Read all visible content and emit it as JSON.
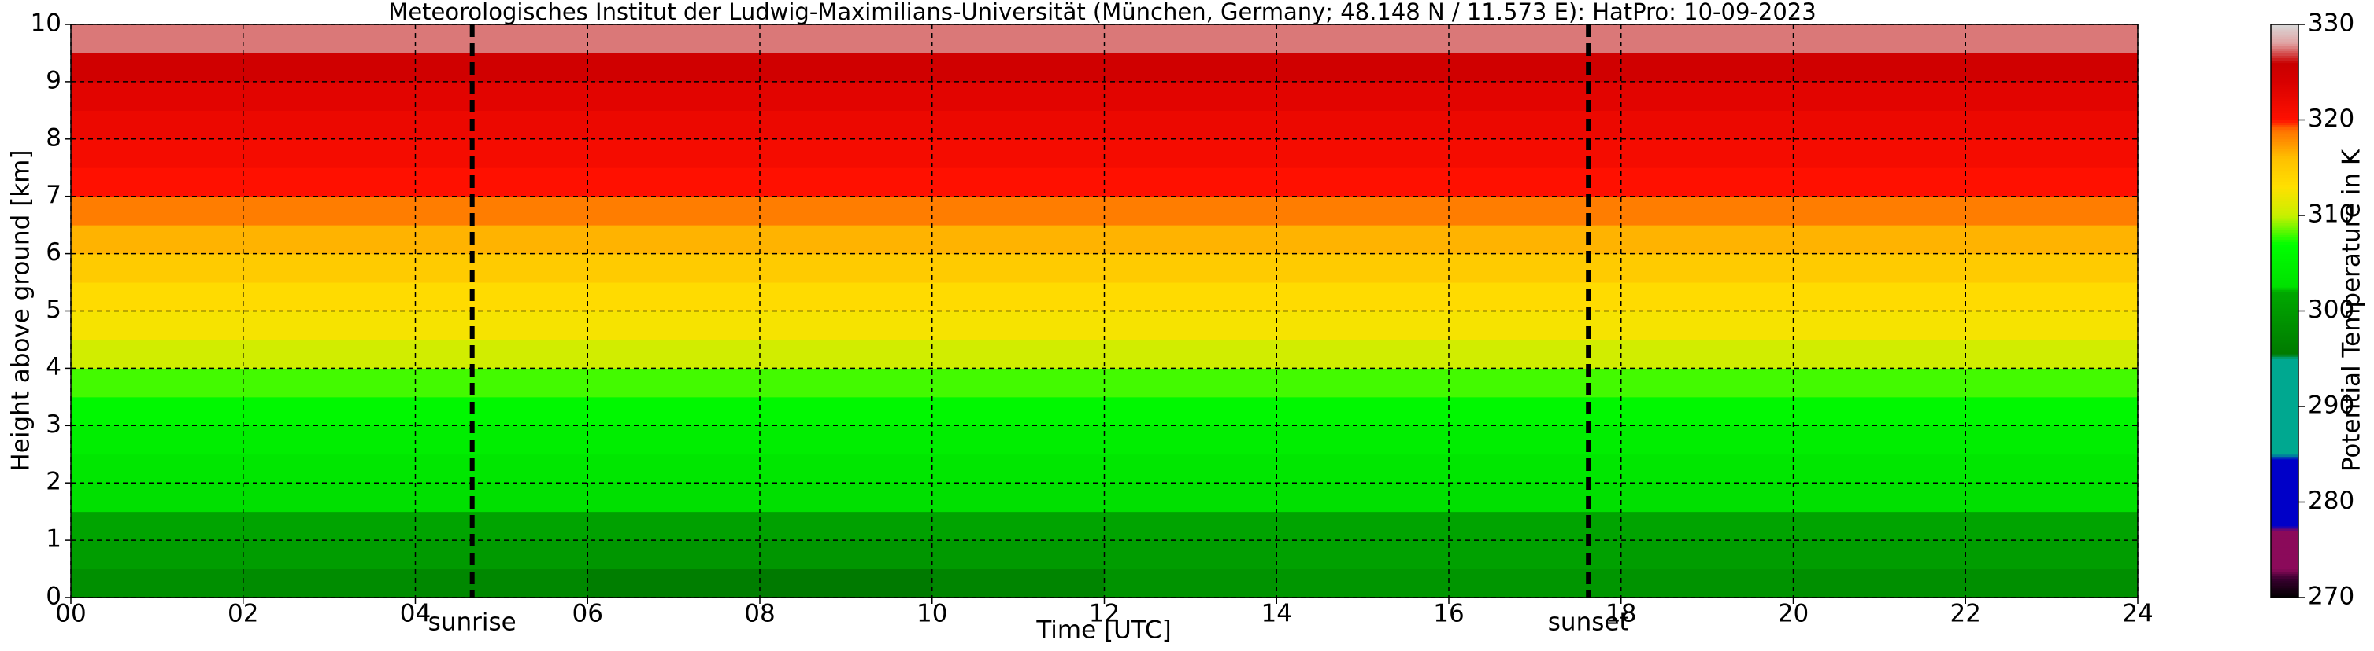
{
  "chart_data": {
    "type": "heatmap",
    "title": "Meteorologisches Institut der Ludwig-Maximilians-Universität (München, Germany; 48.148 N / 11.573 E):    HatPro: 10-09-2023",
    "xlabel": "Time [UTC]",
    "ylabel": "Height above ground [km]",
    "colorbar_label": "Potential Temperature in K",
    "xlim": [
      0,
      24
    ],
    "ylim": [
      0,
      10
    ],
    "clim": [
      270,
      330
    ],
    "xticks": [
      {
        "value": 0,
        "label": "00"
      },
      {
        "value": 2,
        "label": "02"
      },
      {
        "value": 4,
        "label": "04"
      },
      {
        "value": 6,
        "label": "06"
      },
      {
        "value": 8,
        "label": "08"
      },
      10,
      12,
      14,
      16,
      18,
      20,
      22,
      24
    ],
    "yticks": [
      0,
      1,
      2,
      3,
      4,
      5,
      6,
      7,
      8,
      9,
      10
    ],
    "cticks": [
      270,
      280,
      290,
      300,
      310,
      320,
      330
    ],
    "grid": true,
    "x_edges": [
      0,
      2,
      4,
      6,
      8,
      10,
      12,
      14,
      16,
      18,
      20,
      22,
      24
    ],
    "y_edges": [
      0,
      0.5,
      1,
      1.5,
      2,
      2.5,
      3,
      3.5,
      4,
      4.5,
      5,
      5.5,
      6,
      6.5,
      7,
      7.5,
      8,
      8.5,
      9,
      9.5,
      10
    ],
    "z": [
      [
        298.5,
        298,
        297.5,
        296,
        295.5,
        297,
        299,
        299.5,
        299.5,
        299,
        298.5,
        298.5
      ],
      [
        300.5,
        300.5,
        300,
        299.5,
        299.5,
        300,
        300.5,
        301,
        301,
        300.5,
        300.5,
        300.5
      ],
      [
        301.5,
        301.5,
        301.5,
        301,
        301,
        301.5,
        301.5,
        301.5,
        301.5,
        301.5,
        301.5,
        301.5
      ],
      [
        302.5,
        302.5,
        302.5,
        302.5,
        302.5,
        302.5,
        302.5,
        302.5,
        302.5,
        302.5,
        302.5,
        302.5
      ],
      [
        303.5,
        303.5,
        303.5,
        303.5,
        303.5,
        303.5,
        303.5,
        303.5,
        303.5,
        303.5,
        303.5,
        303.5
      ],
      [
        304.5,
        304.5,
        304.5,
        304.5,
        304.5,
        304.5,
        304.5,
        304.5,
        304.5,
        304.5,
        304.5,
        304.5
      ],
      [
        306,
        306,
        306,
        306,
        306,
        306,
        306,
        306,
        306,
        306,
        306,
        306
      ],
      [
        308,
        308,
        308,
        308,
        308,
        308,
        308,
        308,
        308,
        308,
        308,
        308
      ],
      [
        310.5,
        310.5,
        310.5,
        310.5,
        310.5,
        310.5,
        310.5,
        310.5,
        310.5,
        310.5,
        310.5,
        310.5
      ],
      [
        312.5,
        312.5,
        312.5,
        312.5,
        312.5,
        312.5,
        312.5,
        312.5,
        312.5,
        312.5,
        312.5,
        312.5
      ],
      [
        313.5,
        313.5,
        313.5,
        313.5,
        313.5,
        313.5,
        313.5,
        313.5,
        313.5,
        313.5,
        313.5,
        313.5
      ],
      [
        315,
        315,
        315,
        315,
        315,
        315,
        315,
        315,
        315,
        315,
        315,
        315
      ],
      [
        316.5,
        316.5,
        316.5,
        316.5,
        316.5,
        316.5,
        316.5,
        316.5,
        316.5,
        316.5,
        316.5,
        316.5
      ],
      [
        318.5,
        318.5,
        318.5,
        318.5,
        318.5,
        318.5,
        318.5,
        318.5,
        318.5,
        318.5,
        318.5,
        318.5
      ],
      [
        320,
        320,
        320,
        320,
        320,
        320,
        320,
        320,
        320,
        320,
        320,
        320
      ],
      [
        321,
        321,
        321,
        321,
        321,
        321,
        321,
        321,
        321,
        321,
        321,
        321
      ],
      [
        322,
        322,
        322,
        322,
        322,
        322,
        322,
        322,
        322,
        322,
        322,
        322
      ],
      [
        323,
        323,
        323,
        323,
        323,
        323,
        323,
        323,
        323,
        323,
        323,
        323
      ],
      [
        325,
        325,
        325,
        325,
        325,
        325,
        325,
        325,
        325,
        325,
        325,
        325
      ],
      [
        327.5,
        327.5,
        327.5,
        327.5,
        327.5,
        327.5,
        327.5,
        327.5,
        327.5,
        327.5,
        327.5,
        327.5
      ]
    ],
    "colorscale": [
      [
        270,
        "#000000"
      ],
      [
        272,
        "#3a0030"
      ],
      [
        273,
        "#8b0a5a"
      ],
      [
        277,
        "#8b0a5a"
      ],
      [
        277.5,
        "#0000c8"
      ],
      [
        284.5,
        "#0000c8"
      ],
      [
        285,
        "#00a890"
      ],
      [
        295,
        "#00a890"
      ],
      [
        295.5,
        "#007a00"
      ],
      [
        302,
        "#00a800"
      ],
      [
        302.5,
        "#00e000"
      ],
      [
        307,
        "#00ff00"
      ],
      [
        310,
        "#c8f000"
      ],
      [
        313,
        "#ffe000"
      ],
      [
        316,
        "#ffc000"
      ],
      [
        319,
        "#ff7000"
      ],
      [
        320,
        "#ff1000"
      ],
      [
        324,
        "#d80000"
      ],
      [
        326,
        "#c80000"
      ],
      [
        328,
        "#e0a0a0"
      ],
      [
        330,
        "#d8d8d8"
      ]
    ],
    "annotations": [
      {
        "text": "sunrise",
        "x": 4.66
      },
      {
        "text": "sunset",
        "x": 17.62
      }
    ]
  }
}
